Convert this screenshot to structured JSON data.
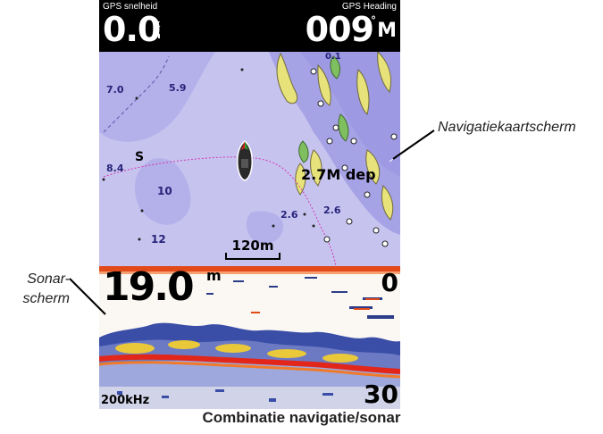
{
  "header": {
    "speed_label": "GPS snelheid",
    "speed_value": "0.0",
    "speed_unit_top": "k",
    "speed_unit_bottom": "h",
    "heading_label": "GPS Heading",
    "heading_value": "009",
    "heading_unit_degree": "°",
    "heading_unit": "M"
  },
  "map": {
    "depths": [
      "7.0",
      "5.9",
      "8.4",
      "10",
      "12",
      "2.6",
      "2.6",
      "0.1"
    ],
    "waypoint_label": "S",
    "distance_label": "2.7M dep",
    "scale_label": "120m",
    "colors": {
      "water": "#c6c3ef",
      "land": "#e8e27a",
      "shallow": "#a6a2e6",
      "route": "#d23ab0"
    }
  },
  "sonar": {
    "depth": "19.0",
    "depth_unit": "m",
    "range_top": "0",
    "range_bottom": "30",
    "frequency": "200kHz"
  },
  "callouts": {
    "navigation": "Navigatiekaartscherm",
    "sonar_line1": "Sonar-",
    "sonar_line2": "scherm"
  },
  "caption": "Combinatie navigatie/sonar"
}
